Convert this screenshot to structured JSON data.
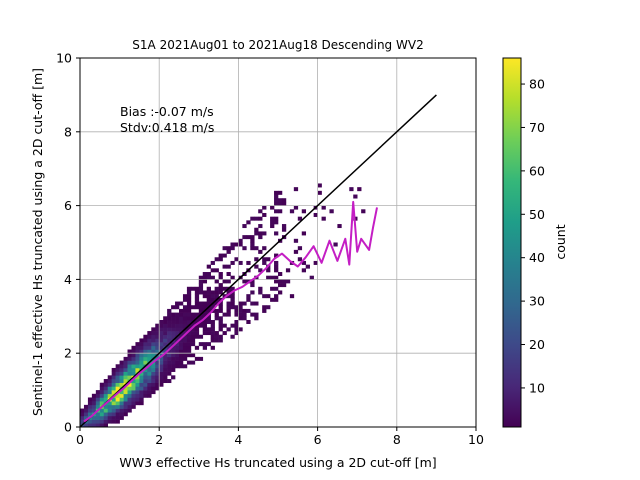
{
  "chart_data": {
    "type": "heatmap",
    "title": "S1A 2021Aug01 to 2021Aug18 Descending WV2",
    "xlabel": "WW3 effective Hs truncated using a 2D cut-off [m]",
    "ylabel": "Sentinel-1 effective Hs truncated using a 2D cut-off [m]",
    "xlim": [
      0,
      10
    ],
    "ylim": [
      0,
      10
    ],
    "xticks": [
      "0",
      "2",
      "4",
      "6",
      "8",
      "10"
    ],
    "yticks": [
      "0",
      "2",
      "4",
      "6",
      "8",
      "10"
    ],
    "grid": true,
    "annotations": [
      "Bias :-0.07 m/s",
      "Stdv:0.418 m/s"
    ],
    "colorbar": {
      "label": "count",
      "range": [
        1,
        86
      ],
      "ticks": [
        "10",
        "20",
        "30",
        "40",
        "50",
        "60",
        "70",
        "80"
      ],
      "colormap": [
        "#440154",
        "#482878",
        "#3e4989",
        "#31688e",
        "#26828e",
        "#1f9e89",
        "#35b779",
        "#6ece58",
        "#b5de2b",
        "#fde725"
      ]
    },
    "identity_line": {
      "x": [
        0,
        9
      ],
      "y": [
        0,
        9
      ],
      "color": "#000000"
    },
    "binned_mean": {
      "color": "#c41ec4",
      "x": [
        0.1,
        0.3,
        0.5,
        0.7,
        0.9,
        1.1,
        1.3,
        1.5,
        1.7,
        1.9,
        2.1,
        2.3,
        2.5,
        2.7,
        2.9,
        3.1,
        3.3,
        3.5,
        3.7,
        3.9,
        4.1,
        4.3,
        4.5,
        4.7,
        4.9,
        5.1,
        5.3,
        5.5,
        5.7,
        5.9,
        6.1,
        6.3,
        6.5,
        6.7,
        6.8,
        6.9,
        7.0,
        7.1,
        7.3,
        7.4,
        7.5
      ],
      "y": [
        0.15,
        0.3,
        0.5,
        0.68,
        0.87,
        1.05,
        1.25,
        1.45,
        1.62,
        1.8,
        1.95,
        2.15,
        2.35,
        2.55,
        2.75,
        2.9,
        3.1,
        3.35,
        3.55,
        3.7,
        3.8,
        3.95,
        4.1,
        4.3,
        4.55,
        4.7,
        4.5,
        4.35,
        4.6,
        4.9,
        4.45,
        5.05,
        4.5,
        5.1,
        4.4,
        6.1,
        4.75,
        5.1,
        4.8,
        5.4,
        5.95
      ]
    },
    "density": {
      "bin_width": 0.1,
      "slope": 0.98,
      "peak_count": 86,
      "peak_at": 1.1
    }
  }
}
